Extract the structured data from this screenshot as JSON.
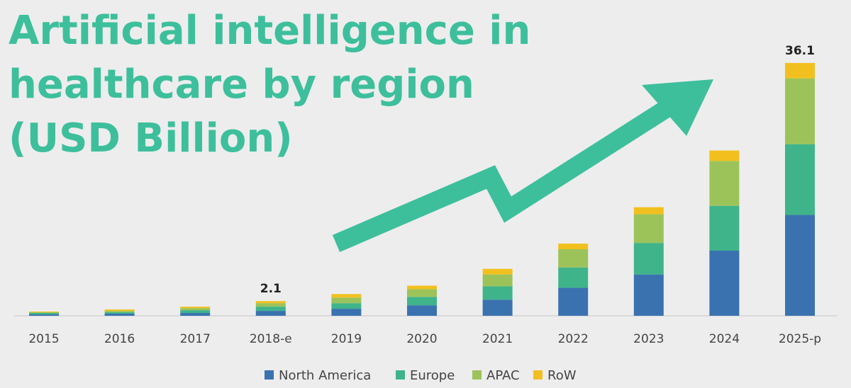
{
  "chart_data": {
    "type": "stacked_bar",
    "title": [
      "Artificial intelligence in",
      "healthcare by region",
      "(USD Billion)"
    ],
    "categories": [
      "2015",
      "2016",
      "2017",
      "2018-e",
      "2019",
      "2020",
      "2021",
      "2022",
      "2023",
      "2024",
      "2025-p"
    ],
    "series": [
      {
        "name": "North America",
        "color": "#3a72b0",
        "values": [
          0.2,
          0.3,
          0.4,
          0.7,
          1.0,
          1.5,
          2.3,
          4.0,
          5.9,
          9.3,
          14.4
        ]
      },
      {
        "name": "Europe",
        "color": "#3fb48a",
        "values": [
          0.2,
          0.2,
          0.4,
          0.6,
          0.8,
          1.2,
          1.9,
          2.9,
          4.5,
          6.4,
          10.1
        ]
      },
      {
        "name": "APAC",
        "color": "#9cc35a",
        "values": [
          0.1,
          0.2,
          0.3,
          0.5,
          0.8,
          1.1,
          1.7,
          2.6,
          4.1,
          6.4,
          9.4
        ]
      },
      {
        "name": "RoW",
        "color": "#f2c01e",
        "values": [
          0.1,
          0.2,
          0.2,
          0.3,
          0.5,
          0.5,
          0.8,
          0.8,
          1.0,
          1.5,
          2.2
        ]
      }
    ],
    "annotations": [
      {
        "category": "2018-e",
        "text": "2.1"
      },
      {
        "category": "2025-p",
        "text": "36.1"
      }
    ],
    "ylim": [
      0,
      37
    ],
    "legend": "bottom"
  }
}
